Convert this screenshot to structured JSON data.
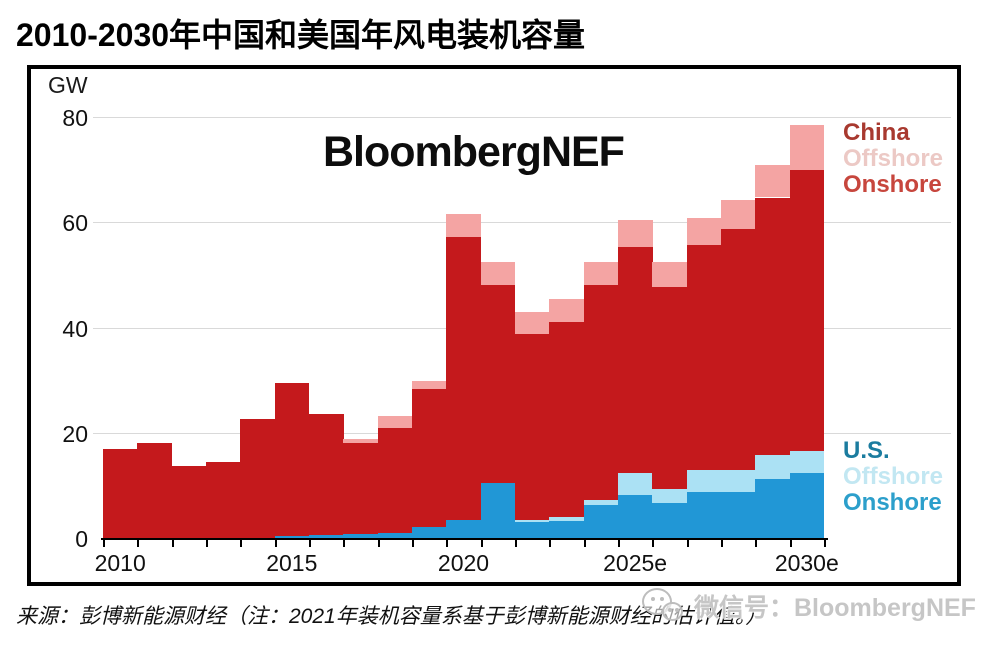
{
  "page_title": "2010-2030年中国和美国年风电装机容量",
  "chart": {
    "unit_label": "GW",
    "center_watermark": "BloombergNEF",
    "y_ticks": [
      0,
      20,
      40,
      60,
      80
    ],
    "x_axis_labels": [
      {
        "text": "2010",
        "year": 2010
      },
      {
        "text": "2015",
        "year": 2015
      },
      {
        "text": "2020",
        "year": 2020
      },
      {
        "text": "2025e",
        "year": 2025
      },
      {
        "text": "2030e",
        "year": 2030
      }
    ],
    "legend_china": {
      "title": "China",
      "offshore": "Offshore",
      "onshore": "Onshore",
      "title_color": "#A8392F",
      "offshore_color": "#ECC9C5",
      "onshore_color": "#C7463D"
    },
    "legend_us": {
      "title": "U.S.",
      "offshore": "Offshore",
      "onshore": "Onshore",
      "title_color": "#1B7C9F",
      "offshore_color": "#C2E7F2",
      "onshore_color": "#2C9FCB"
    },
    "colors": {
      "china_onshore": "#C4191C",
      "china_offshore": "#F4A4A3",
      "us_onshore": "#2197D6",
      "us_offshore": "#ABE1F4",
      "gridline": "#d9d9d9",
      "axis": "#000000"
    }
  },
  "chart_data": {
    "type": "bar",
    "stacked": true,
    "title": "2010-2030年中国和美国年风电装机容量",
    "ylabel": "GW",
    "ylim": [
      0,
      85
    ],
    "grid": true,
    "legend_position": "right",
    "categories": [
      2010,
      2011,
      2012,
      2013,
      2014,
      2015,
      2016,
      2017,
      2018,
      2019,
      2020,
      2021,
      2022,
      2023,
      2024,
      2025,
      2026,
      2027,
      2028,
      2029,
      2030
    ],
    "series": [
      {
        "name": "U.S. Onshore",
        "color": "#2197D6",
        "values": [
          0,
          0,
          0,
          0,
          0,
          0.3,
          0.5,
          0.7,
          1.0,
          2.1,
          3.4,
          10.4,
          3.0,
          3.3,
          6.2,
          8.1,
          6.6,
          8.7,
          8.7,
          11.3,
          12.3
        ]
      },
      {
        "name": "U.S. Offshore",
        "color": "#ABE1F4",
        "values": [
          0,
          0,
          0,
          0,
          0,
          0,
          0,
          0,
          0,
          0,
          0,
          0,
          0.4,
          0.7,
          1.0,
          4.2,
          2.8,
          4.2,
          4.2,
          4.4,
          4.3
        ]
      },
      {
        "name": "China Onshore",
        "color": "#C4191C",
        "values": [
          17.0,
          18.0,
          13.6,
          14.5,
          22.6,
          29.1,
          23.1,
          17.4,
          19.9,
          26.2,
          53.8,
          37.7,
          35.3,
          37.1,
          40.9,
          43.0,
          38.3,
          42.8,
          45.8,
          49.0,
          53.4
        ]
      },
      {
        "name": "China Offshore",
        "color": "#F4A4A3",
        "values": [
          0,
          0,
          0,
          0,
          0,
          0,
          0,
          0.8,
          2.3,
          1.5,
          4.3,
          4.4,
          4.3,
          4.4,
          4.4,
          5.1,
          4.8,
          5.2,
          5.5,
          6.2,
          8.5
        ]
      }
    ],
    "totals_gw": [
      17.0,
      18.0,
      13.6,
      14.5,
      22.6,
      29.4,
      23.6,
      18.9,
      23.2,
      29.8,
      61.5,
      52.5,
      43.0,
      45.5,
      52.5,
      60.4,
      52.5,
      60.9,
      64.2,
      70.9,
      78.5
    ]
  },
  "footer": {
    "source_note": "来源：彭博新能源财经（注：2021年装机容量系基于彭博新能源财经的估计值。）"
  },
  "overlay": {
    "wechat_label": "微信号：BloombergNEF"
  }
}
